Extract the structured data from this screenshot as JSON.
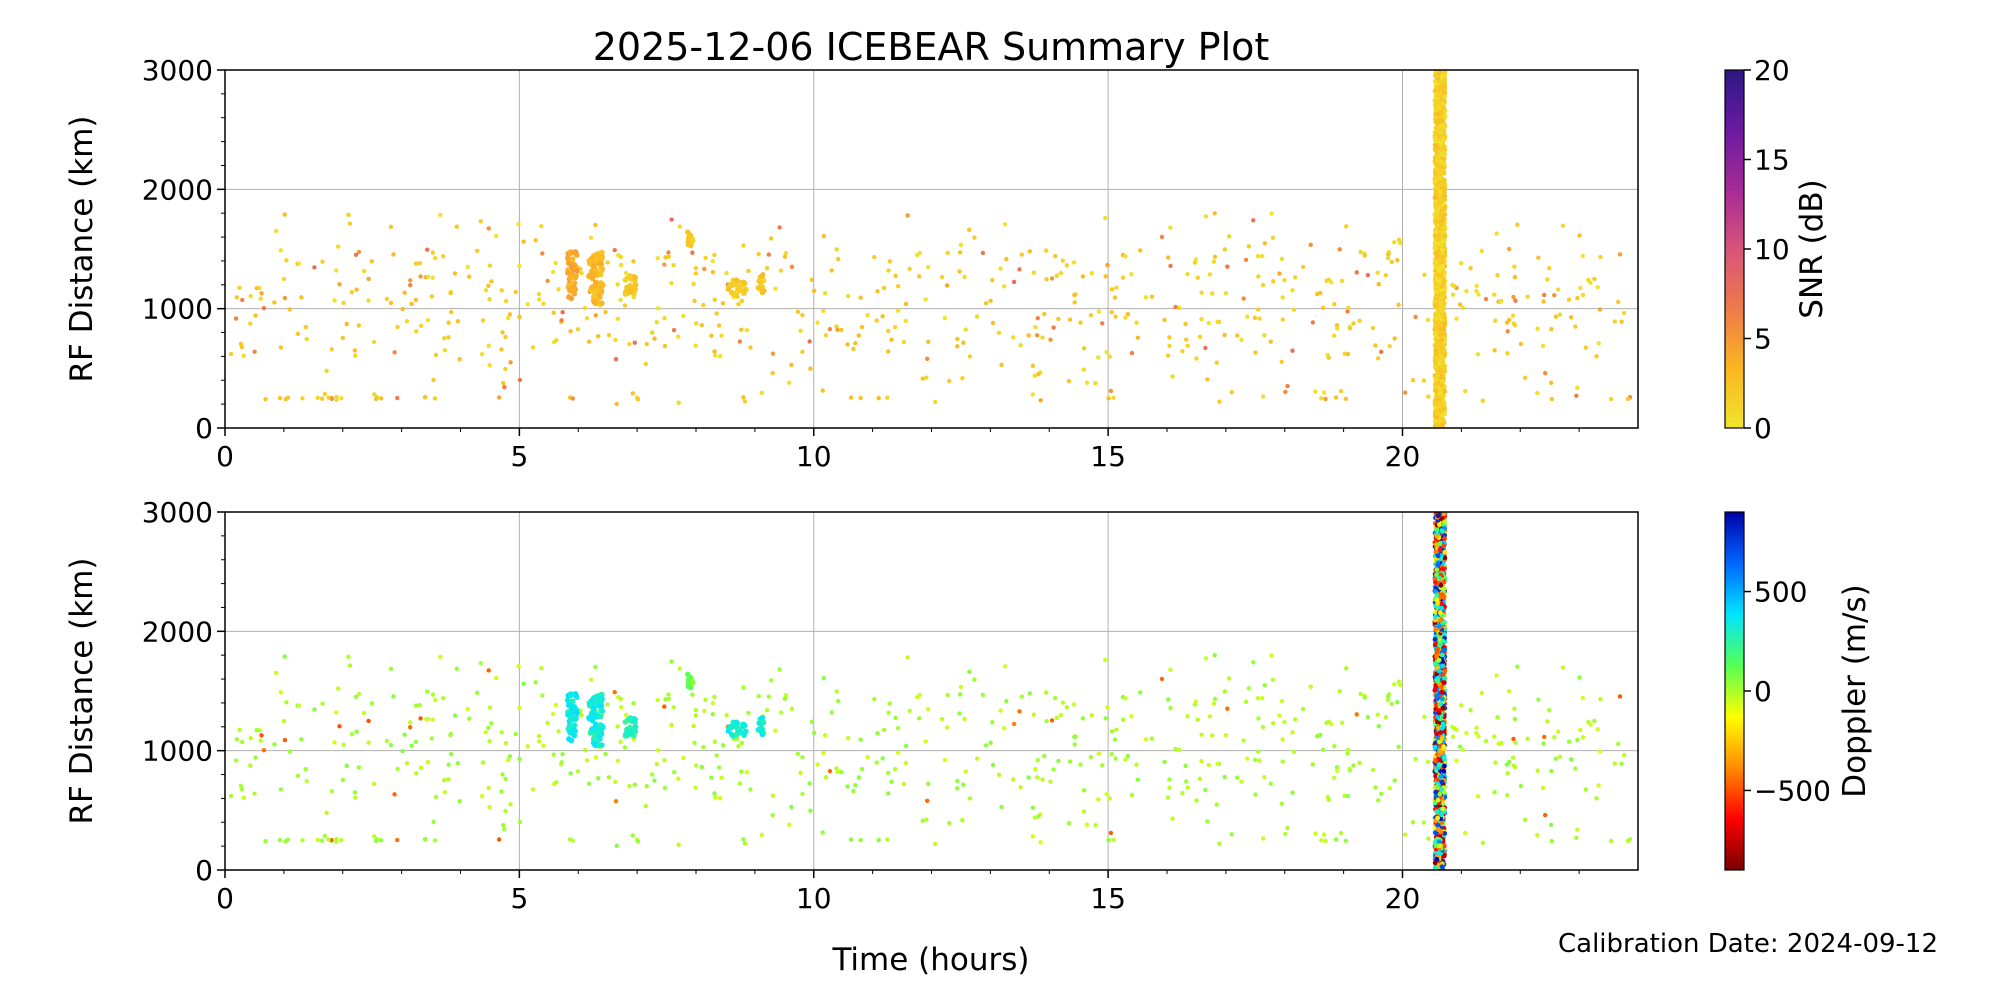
{
  "figure": {
    "title": "2025-12-06 ICEBEAR Summary Plot",
    "xlabel": "Time (hours)",
    "calibration": "Calibration Date: 2024-09-12"
  },
  "chart_data": [
    {
      "type": "scatter",
      "panel": "snr",
      "ylabel": "RF Distance (km)",
      "xlim": [
        0,
        24
      ],
      "ylim": [
        0,
        3000
      ],
      "x_ticks": [
        0,
        5,
        10,
        15,
        20
      ],
      "y_ticks": [
        0,
        1000,
        2000,
        3000
      ],
      "grid": true,
      "colorbar": {
        "label": "SNR (dB)",
        "range": [
          0,
          20
        ],
        "ticks": [
          0,
          5,
          10,
          15,
          20
        ],
        "colormap": [
          "#f0e42a",
          "#fbb622",
          "#ee7a4a",
          "#d8547a",
          "#a62a96",
          "#6b1aa3",
          "#2c1782"
        ]
      },
      "dense_band": {
        "x_start": 20.55,
        "x_end": 20.72,
        "y_range": [
          0,
          3000
        ]
      },
      "clusters": [
        {
          "x": 5.9,
          "y": 1280,
          "dx": 0.08,
          "dy": 200,
          "n": 50,
          "value": 3
        },
        {
          "x": 6.3,
          "y": 1250,
          "dx": 0.12,
          "dy": 220,
          "n": 80,
          "value": 2
        },
        {
          "x": 6.9,
          "y": 1200,
          "dx": 0.1,
          "dy": 80,
          "n": 30,
          "value": 1
        },
        {
          "x": 7.9,
          "y": 1580,
          "dx": 0.05,
          "dy": 60,
          "n": 12,
          "value": 1
        },
        {
          "x": 8.7,
          "y": 1180,
          "dx": 0.15,
          "dy": 60,
          "n": 25,
          "value": 1
        },
        {
          "x": 9.1,
          "y": 1200,
          "dx": 0.05,
          "dy": 80,
          "n": 15,
          "value": 1
        }
      ],
      "scatter_count": 650,
      "near_range_row": {
        "y": 250,
        "x_ranges": [
          [
            0.6,
            3.7
          ],
          [
            5.8,
            6.1
          ],
          [
            6.8,
            7.1
          ],
          [
            10.6,
            11.3
          ],
          [
            15.0,
            15.1
          ],
          [
            18.5,
            19.2
          ],
          [
            23.5,
            24
          ]
        ]
      }
    },
    {
      "type": "scatter",
      "panel": "doppler",
      "ylabel": "RF Distance (km)",
      "xlim": [
        0,
        24
      ],
      "ylim": [
        0,
        3000
      ],
      "x_ticks": [
        0,
        5,
        10,
        15,
        20
      ],
      "y_ticks": [
        0,
        1000,
        2000,
        3000
      ],
      "grid": true,
      "colorbar": {
        "label": "Doppler (m/s)",
        "range": [
          -900,
          900
        ],
        "ticks": [
          -500,
          0,
          500
        ],
        "colormap": [
          "#7a0000",
          "#ff0000",
          "#ff8c00",
          "#ffff00",
          "#55ff55",
          "#00e5ff",
          "#0066ff",
          "#0000aa"
        ]
      },
      "dense_band": {
        "x_start": 20.55,
        "x_end": 20.72,
        "y_range": [
          0,
          3000
        ]
      },
      "clusters": [
        {
          "x": 5.9,
          "y": 1280,
          "dx": 0.08,
          "dy": 200,
          "n": 50,
          "value": 350
        },
        {
          "x": 6.3,
          "y": 1250,
          "dx": 0.12,
          "dy": 220,
          "n": 80,
          "value": 330
        },
        {
          "x": 6.9,
          "y": 1200,
          "dx": 0.1,
          "dy": 80,
          "n": 30,
          "value": 280
        },
        {
          "x": 7.9,
          "y": 1580,
          "dx": 0.05,
          "dy": 60,
          "n": 12,
          "value": 100
        },
        {
          "x": 8.7,
          "y": 1180,
          "dx": 0.15,
          "dy": 60,
          "n": 25,
          "value": 330
        },
        {
          "x": 9.1,
          "y": 1200,
          "dx": 0.05,
          "dy": 80,
          "n": 15,
          "value": 330
        }
      ],
      "scatter_count": 650,
      "near_range_row": {
        "y": 250,
        "x_ranges": [
          [
            0.6,
            3.7
          ],
          [
            5.8,
            6.1
          ],
          [
            6.8,
            7.1
          ],
          [
            10.6,
            11.3
          ],
          [
            15.0,
            15.1
          ],
          [
            18.5,
            19.2
          ],
          [
            23.5,
            24
          ]
        ]
      }
    }
  ]
}
